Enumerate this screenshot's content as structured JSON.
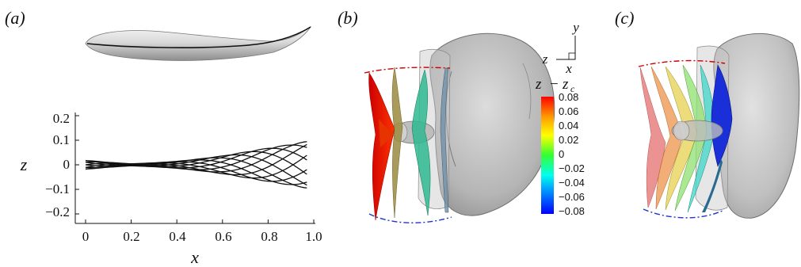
{
  "panels": {
    "a": "(a)",
    "b": "(b)",
    "c": "(c)"
  },
  "chart_data": {
    "type": "line",
    "xlabel": "x",
    "ylabel": "z",
    "xlim": [
      0,
      1
    ],
    "ylim": [
      -0.28,
      0.22
    ],
    "x_ticks": [
      "0",
      "0.2",
      "0.4",
      "0.6",
      "0.8",
      "1.0"
    ],
    "y_ticks": [
      "0.2",
      "0.1",
      "0",
      "−0.1",
      "−0.2"
    ],
    "x_tick_values": [
      0,
      0.2,
      0.4,
      0.6,
      0.8,
      1.0
    ],
    "y_tick_values": [
      0.2,
      0.1,
      0,
      -0.1,
      -0.2
    ],
    "midline": {
      "description": "Overlaid midline positions over one tail-beat cycle",
      "x_range": [
        0,
        0.97
      ],
      "envelope_points_x": [
        0,
        0.1,
        0.2,
        0.3,
        0.4,
        0.5,
        0.6,
        0.7,
        0.8,
        0.9,
        0.97
      ],
      "envelope_amplitude": [
        0.018,
        0.01,
        0.004,
        0.008,
        0.014,
        0.024,
        0.036,
        0.052,
        0.068,
        0.083,
        0.095
      ],
      "n_phases": 10
    }
  },
  "colorbar": {
    "title_left": "z",
    "title_minus": "−",
    "title_right": "z",
    "title_sub": "c",
    "ticks": [
      "0.08",
      "0.06",
      "0.04",
      "0.02",
      "0",
      "−0.02",
      "−0.04",
      "−0.06",
      "−0.08"
    ],
    "tick_values": [
      0.08,
      0.06,
      0.04,
      0.02,
      0,
      -0.02,
      -0.04,
      -0.06,
      -0.08
    ],
    "colors": [
      "#0000ff",
      "#00aaff",
      "#00ffcc",
      "#66ff33",
      "#ffff00",
      "#ff9900",
      "#ff0000"
    ]
  },
  "triad": {
    "y": "y",
    "z": "z",
    "x": "x"
  }
}
